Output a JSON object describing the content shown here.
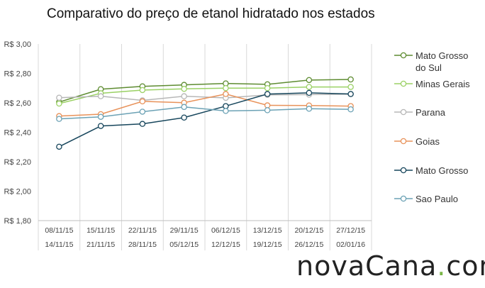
{
  "brand": {
    "part1": "novaCana",
    "dot": ".",
    "part2": "com"
  },
  "chart_data": {
    "type": "line",
    "title": "Comparativo do preço de etanol hidratado nos estados",
    "xlabel": "",
    "ylabel": "",
    "ylim": [
      1.8,
      3.0
    ],
    "yticks": [
      {
        "value": 1.8,
        "label": "R$ 1,80"
      },
      {
        "value": 2.0,
        "label": "R$ 2,00"
      },
      {
        "value": 2.2,
        "label": "R$ 2,20"
      },
      {
        "value": 2.4,
        "label": "R$ 2,40"
      },
      {
        "value": 2.6,
        "label": "R$ 2,60"
      },
      {
        "value": 2.8,
        "label": "R$ 2,80"
      },
      {
        "value": 3.0,
        "label": "R$ 3,00"
      }
    ],
    "grid": "vertical",
    "legend_position": "right",
    "categories": [
      {
        "start": "08/11/15",
        "end": "14/11/15"
      },
      {
        "start": "15/11/15",
        "end": "21/11/15"
      },
      {
        "start": "22/11/15",
        "end": "28/11/15"
      },
      {
        "start": "29/11/15",
        "end": "05/12/15"
      },
      {
        "start": "06/12/15",
        "end": "12/12/15"
      },
      {
        "start": "13/12/15",
        "end": "19/12/15"
      },
      {
        "start": "20/12/15",
        "end": "26/12/15"
      },
      {
        "start": "27/12/15",
        "end": "02/01/16"
      }
    ],
    "series": [
      {
        "name": "Mato Grosso do Sul",
        "legend_lines": [
          "Mato Grosso",
          "do Sul"
        ],
        "color": "#5e8c31",
        "values": [
          2.605,
          2.693,
          2.712,
          2.722,
          2.732,
          2.726,
          2.755,
          2.759
        ]
      },
      {
        "name": "Minas Gerais",
        "legend_lines": [
          "Minas Gerais"
        ],
        "color": "#9bd165",
        "values": [
          2.595,
          2.665,
          2.687,
          2.695,
          2.7,
          2.7,
          2.708,
          2.708
        ]
      },
      {
        "name": "Parana",
        "legend_lines": [
          "Parana"
        ],
        "color": "#b7b7b7",
        "values": [
          2.635,
          2.645,
          2.617,
          2.645,
          2.634,
          2.654,
          2.656,
          2.659
        ]
      },
      {
        "name": "Goias",
        "legend_lines": [
          "Goias"
        ],
        "color": "#e8925a",
        "values": [
          2.51,
          2.523,
          2.61,
          2.601,
          2.66,
          2.583,
          2.582,
          2.578
        ]
      },
      {
        "name": "Mato Grosso",
        "legend_lines": [
          "Mato Grosso"
        ],
        "color": "#17465c",
        "values": [
          2.302,
          2.443,
          2.457,
          2.5,
          2.578,
          2.66,
          2.668,
          2.66
        ]
      },
      {
        "name": "Sao Paulo",
        "legend_lines": [
          "Sao Paulo"
        ],
        "color": "#6ca2b5",
        "values": [
          2.491,
          2.505,
          2.54,
          2.572,
          2.545,
          2.55,
          2.56,
          2.556
        ]
      }
    ]
  }
}
